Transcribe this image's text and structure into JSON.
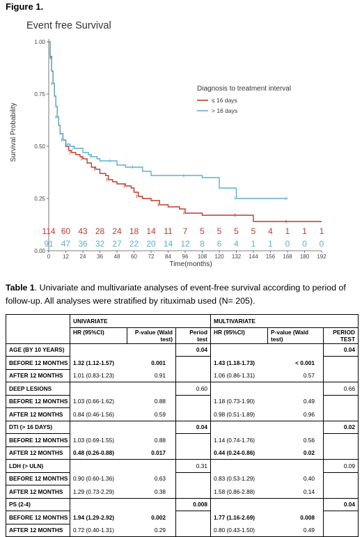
{
  "figure_label": "Figure 1.",
  "chart_data": {
    "type": "line",
    "title": "Event free Survival",
    "xlabel": "Time(months)",
    "ylabel": "Survival Probability",
    "xlim": [
      0,
      192
    ],
    "ylim": [
      0,
      1
    ],
    "x_ticks": [
      0,
      12,
      24,
      36,
      48,
      60,
      72,
      84,
      96,
      108,
      120,
      132,
      144,
      156,
      168,
      180,
      192
    ],
    "y_ticks": [
      "0.00",
      "0.25",
      "0.50",
      "0.75",
      "1.00"
    ],
    "grid": false,
    "legend_title": "Diagnosis to treatment interval",
    "legend_placement": "upper-right",
    "series": [
      {
        "name": "≤ 16 days",
        "color": "#c0392b",
        "points": [
          [
            0,
            1.0
          ],
          [
            1,
            0.93
          ],
          [
            2,
            0.86
          ],
          [
            3,
            0.8
          ],
          [
            4,
            0.74
          ],
          [
            5,
            0.69
          ],
          [
            6,
            0.64
          ],
          [
            7,
            0.6
          ],
          [
            8,
            0.56
          ],
          [
            10,
            0.53
          ],
          [
            12,
            0.5
          ],
          [
            14,
            0.48
          ],
          [
            16,
            0.47
          ],
          [
            19,
            0.46
          ],
          [
            22,
            0.45
          ],
          [
            24,
            0.44
          ],
          [
            27,
            0.42
          ],
          [
            30,
            0.4
          ],
          [
            33,
            0.39
          ],
          [
            36,
            0.37
          ],
          [
            40,
            0.36
          ],
          [
            42,
            0.34
          ],
          [
            45,
            0.33
          ],
          [
            48,
            0.32
          ],
          [
            54,
            0.31
          ],
          [
            58,
            0.3
          ],
          [
            60,
            0.28
          ],
          [
            63,
            0.26
          ],
          [
            66,
            0.25
          ],
          [
            72,
            0.24
          ],
          [
            78,
            0.22
          ],
          [
            84,
            0.21
          ],
          [
            92,
            0.2
          ],
          [
            96,
            0.18
          ],
          [
            108,
            0.17
          ],
          [
            120,
            0.17
          ],
          [
            132,
            0.17
          ],
          [
            144,
            0.14
          ],
          [
            156,
            0.14
          ],
          [
            168,
            0.14
          ],
          [
            180,
            0.14
          ],
          [
            192,
            0.14
          ]
        ],
        "numbers_at_risk": [
          114,
          60,
          43,
          28,
          24,
          18,
          14,
          11,
          7,
          5,
          5,
          5,
          5,
          4,
          1,
          1,
          1
        ]
      },
      {
        "name": "> 16 days",
        "color": "#5aafd0",
        "points": [
          [
            0,
            1.0
          ],
          [
            1,
            0.92
          ],
          [
            2,
            0.86
          ],
          [
            3,
            0.8
          ],
          [
            4,
            0.74
          ],
          [
            5,
            0.69
          ],
          [
            6,
            0.64
          ],
          [
            7,
            0.6
          ],
          [
            8,
            0.56
          ],
          [
            10,
            0.53
          ],
          [
            12,
            0.51
          ],
          [
            15,
            0.5
          ],
          [
            18,
            0.49
          ],
          [
            24,
            0.47
          ],
          [
            28,
            0.46
          ],
          [
            30,
            0.45
          ],
          [
            34,
            0.44
          ],
          [
            36,
            0.43
          ],
          [
            44,
            0.43
          ],
          [
            48,
            0.41
          ],
          [
            54,
            0.4
          ],
          [
            60,
            0.4
          ],
          [
            66,
            0.38
          ],
          [
            72,
            0.36
          ],
          [
            96,
            0.36
          ],
          [
            108,
            0.35
          ],
          [
            120,
            0.3
          ],
          [
            132,
            0.25
          ],
          [
            144,
            0.25
          ],
          [
            156,
            0.25
          ],
          [
            168,
            0.25
          ]
        ],
        "numbers_at_risk": [
          91,
          47,
          36,
          32,
          27,
          22,
          20,
          14,
          12,
          8,
          6,
          4,
          1,
          1,
          0,
          0,
          0
        ]
      }
    ]
  },
  "caption": {
    "label": "Table 1",
    "text": ". Univariate and multivariate analyses of event-free survival according to period of follow-up. All analyses were stratified by rituximab used (N= 205)."
  },
  "table": {
    "group_uni": "UNIVARIATE",
    "group_multi": "MULTIVARIATE",
    "col_hr": "HR (95%CI)",
    "col_p": "P-value (Wald test)",
    "col_period": "Period test",
    "col_hr2": "HR (95%CI)",
    "col_p2": "P-value (Wald test)",
    "col_period2": "PERIOD TEST",
    "groups": [
      {
        "label": "AGE (BY 10 YEARS)",
        "uni_period": "0.04",
        "uni_period_bold": true,
        "multi_period": "0.04",
        "multi_period_bold": true,
        "rows": [
          {
            "label": "BEFORE 12 MONTHS",
            "hr": "1.32 (1.12-1.57)",
            "p": "0.001",
            "bold": true,
            "hr2": "1.43 (1.18-1.73)",
            "p2": "< 0.001",
            "bold2": true
          },
          {
            "label": "AFTER 12 MONTHS",
            "hr": "1.01 (0.83-1.23)",
            "p": "0.91",
            "bold": false,
            "hr2": "1.06 (0.86-1.31)",
            "p2": "0.57",
            "bold2": false
          }
        ]
      },
      {
        "label": "DEEP LESIONS",
        "uni_period": "0.60",
        "uni_period_bold": false,
        "multi_period": "0.66",
        "multi_period_bold": false,
        "rows": [
          {
            "label": "BEFORE 12 MONTHS",
            "hr": "1.03 (0.66-1.62)",
            "p": "0.88",
            "bold": false,
            "hr2": "1.18 (0.73-1.90)",
            "p2": "0.49",
            "bold2": false
          },
          {
            "label": "AFTER 12 MONTHS",
            "hr": "0.84 (0.46-1.56)",
            "p": "0.59",
            "bold": false,
            "hr2": "0.98 (0.51-1.89)",
            "p2": "0.96",
            "bold2": false
          }
        ]
      },
      {
        "label": "DTI (> 16 DAYS)",
        "uni_period": "0.04",
        "uni_period_bold": true,
        "multi_period": "0.02",
        "multi_period_bold": true,
        "rows": [
          {
            "label": "BEFORE 12 MONTHS",
            "hr": "1.03 (0.69-1.55)",
            "p": "0.88",
            "bold": false,
            "hr2": "1.14 (0.74-1.76)",
            "p2": "0.56",
            "bold2": false
          },
          {
            "label": "AFTER 12 MONTHS",
            "hr": "0.48 (0.26-0.88)",
            "p": "0.017",
            "bold": true,
            "hr2": "0.44 (0.24-0.86)",
            "p2": "0.02",
            "bold2": true
          }
        ]
      },
      {
        "label": "LDH (> ULN)",
        "uni_period": "0.31",
        "uni_period_bold": false,
        "multi_period": "0.09",
        "multi_period_bold": false,
        "rows": [
          {
            "label": "BEFORE 12 MONTHS",
            "hr": "0.90 (0.60-1.36)",
            "p": "0.63",
            "bold": false,
            "hr2": "0.83 (0.53-1.29)",
            "p2": "0.40",
            "bold2": false
          },
          {
            "label": "AFTER 12 MONTHS",
            "hr": "1.29 (0.73-2.29)",
            "p": "0.38",
            "bold": false,
            "hr2": "1.58 (0.86-2.88)",
            "p2": "0.14",
            "bold2": false
          }
        ]
      },
      {
        "label": "PS (2-4)",
        "uni_period": "0.008",
        "uni_period_bold": true,
        "multi_period": "0.04",
        "multi_period_bold": true,
        "rows": [
          {
            "label": "BEFORE 12 MONTHS",
            "hr": "1.94 (1.29-2.92)",
            "p": "0.002",
            "bold": true,
            "hr2": "1.77 (1.16-2.69)",
            "p2": "0.008",
            "bold2": true
          },
          {
            "label": "AFTER 12 MONTHS",
            "hr": "0.72 (0.40-1.31)",
            "p": "0.29",
            "bold": false,
            "hr2": "0.80 (0.43-1.50)",
            "p2": "0.49",
            "bold2": false
          }
        ]
      }
    ]
  }
}
